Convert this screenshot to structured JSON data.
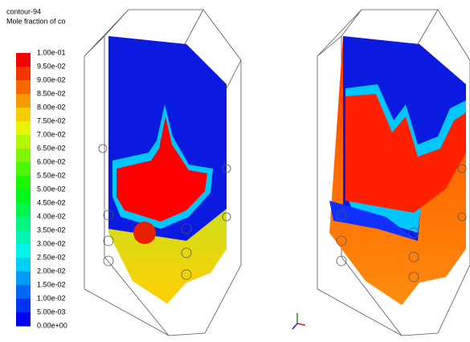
{
  "legend": {
    "title": "contour-94",
    "quantity": "Mole fraction of co",
    "labels": [
      "1.00e-01",
      "9.50e-02",
      "9.00e-02",
      "8.50e-02",
      "8.00e-02",
      "7.50e-02",
      "7.00e-02",
      "6.50e-02",
      "6.00e-02",
      "5.50e-02",
      "5.00e-02",
      "4.50e-02",
      "4.00e-02",
      "3.50e-02",
      "3.00e-02",
      "2.50e-02",
      "2.00e-02",
      "1.50e-02",
      "1.00e-02",
      "5.00e-03",
      "0.00e+00"
    ]
  }
}
